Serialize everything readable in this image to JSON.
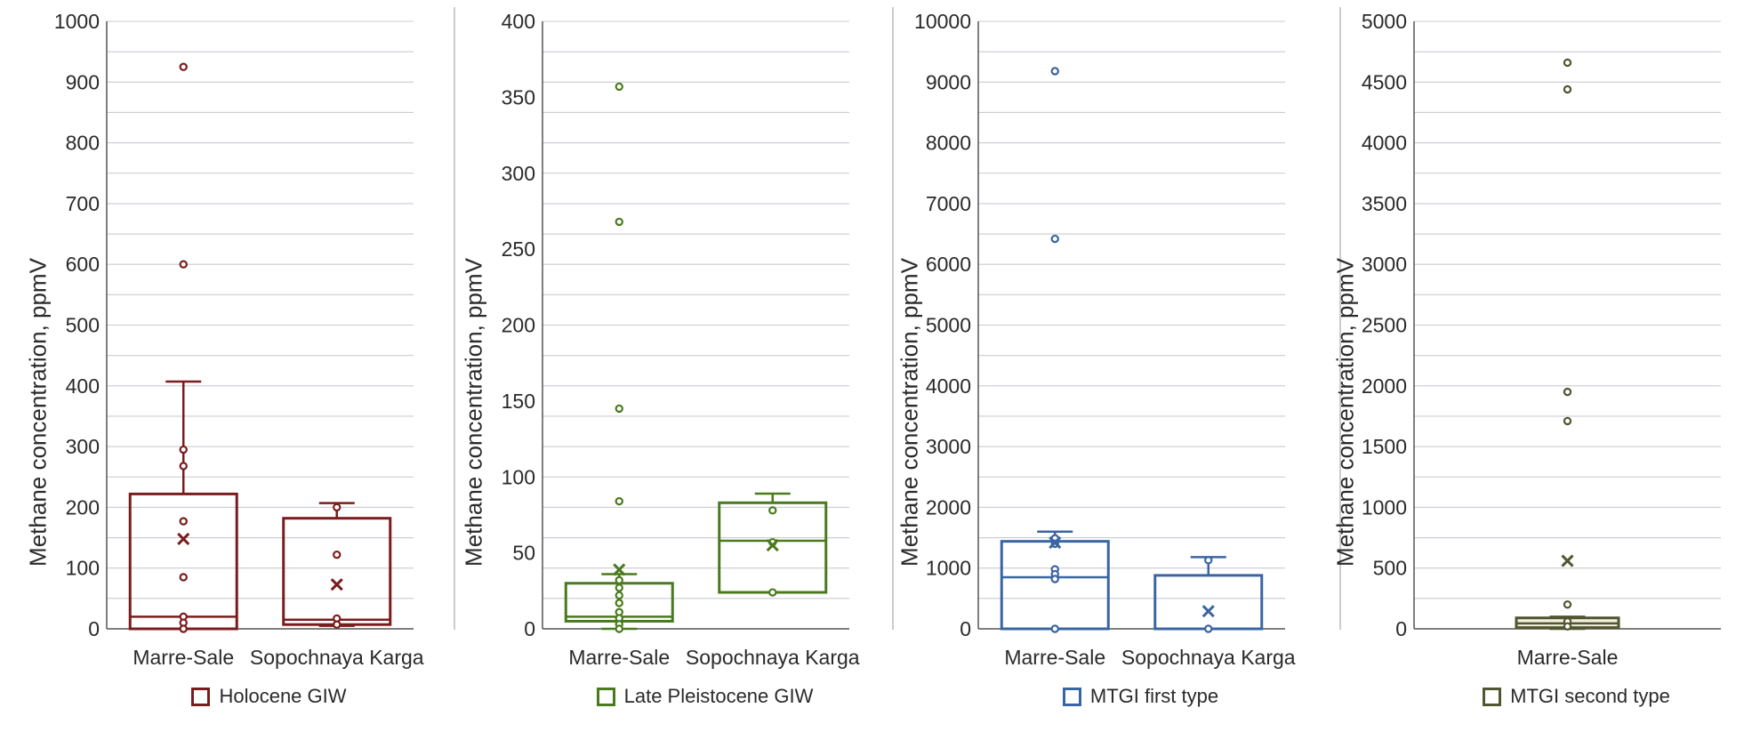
{
  "figure": {
    "y_axis_title": "Methane concentration, ppmV"
  },
  "chart_data": [
    {
      "type": "box",
      "legend": "Holocene GIW",
      "color": "#7b1c1c",
      "ylim": [
        0,
        1000
      ],
      "ytick_step": 100,
      "ylabel": "Methane concentration, ppmV",
      "grid": true,
      "legend_position": "bottom-center",
      "categories": [
        "Marre-Sale",
        "Sopochnaya Karga"
      ],
      "boxes": [
        {
          "whisker_low": 0,
          "q1": 0,
          "median": 20,
          "q3": 222,
          "whisker_high": 407,
          "mean": 148,
          "points": [
            925,
            600,
            295,
            268,
            177,
            85,
            20,
            10,
            0
          ]
        },
        {
          "whisker_low": 5,
          "q1": 7,
          "median": 15,
          "q3": 182,
          "whisker_high": 207,
          "mean": 73,
          "points": [
            200,
            122,
            17,
            7
          ]
        }
      ]
    },
    {
      "type": "box",
      "legend": "Late Pleistocene GIW",
      "color": "#4a7a1e",
      "ylim": [
        0,
        400
      ],
      "ytick_step": 50,
      "ylabel": "Methane concentration, ppmV",
      "grid": true,
      "legend_position": "bottom-center",
      "categories": [
        "Marre-Sale",
        "Sopochnaya Karga"
      ],
      "boxes": [
        {
          "whisker_low": 0,
          "q1": 5,
          "median": 8,
          "q3": 30,
          "whisker_high": 36,
          "mean": 39,
          "points": [
            357,
            268,
            145,
            84,
            32,
            27,
            22,
            17,
            11,
            7,
            3,
            0
          ]
        },
        {
          "whisker_low": 24,
          "q1": 24,
          "median": 58,
          "q3": 83,
          "whisker_high": 89,
          "mean": 55,
          "points": [
            78,
            57,
            24
          ]
        }
      ]
    },
    {
      "type": "box",
      "legend": "MTGI first type",
      "color": "#3a65a3",
      "ylim": [
        0,
        10000
      ],
      "ytick_step": 1000,
      "ylabel": "Methane concentration, ppmV",
      "grid": true,
      "legend_position": "bottom-center",
      "categories": [
        "Marre-Sale",
        "Sopochnaya Karga"
      ],
      "boxes": [
        {
          "whisker_low": 0,
          "q1": 0,
          "median": 850,
          "q3": 1440,
          "whisker_high": 1600,
          "mean": 1420,
          "points": [
            9180,
            6420,
            1490,
            1400,
            980,
            900,
            820,
            0
          ]
        },
        {
          "whisker_low": 0,
          "q1": 0,
          "median": 0,
          "q3": 880,
          "whisker_high": 1180,
          "mean": 290,
          "points": [
            1130,
            0
          ]
        }
      ]
    },
    {
      "type": "box",
      "legend": "MTGI second type",
      "color": "#4f5630",
      "ylim": [
        0,
        5000
      ],
      "ytick_step": 500,
      "ylabel": "Methane concentration, ppmV",
      "grid": true,
      "legend_position": "bottom-center",
      "categories": [
        "Marre-Sale"
      ],
      "boxes": [
        {
          "whisker_low": 0,
          "q1": 10,
          "median": 45,
          "q3": 90,
          "whisker_high": 100,
          "mean": 560,
          "points": [
            4660,
            4440,
            1950,
            1710,
            200,
            60,
            20
          ]
        }
      ]
    }
  ]
}
